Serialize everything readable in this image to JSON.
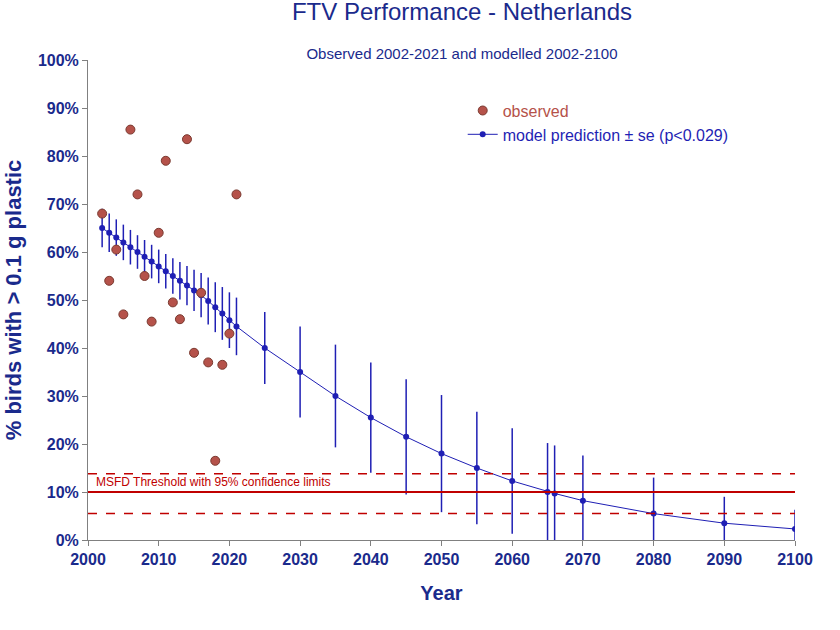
{
  "chart_data": {
    "type": "scatter",
    "title": "FTV Performance - Netherlands",
    "subtitle": "Observed 2002-2021 and modelled 2002-2100",
    "xlabel": "Year",
    "ylabel": "% birds with > 0.1 g plastic",
    "xlim": [
      2000,
      2100
    ],
    "xticks": [
      2000,
      2010,
      2020,
      2030,
      2040,
      2050,
      2060,
      2070,
      2080,
      2090,
      2100
    ],
    "ylim": [
      0,
      100
    ],
    "yticks": [
      {
        "value": 0,
        "label": "0%"
      },
      {
        "value": 10,
        "label": "10%"
      },
      {
        "value": 20,
        "label": "20%"
      },
      {
        "value": 30,
        "label": "30%"
      },
      {
        "value": 40,
        "label": "40%"
      },
      {
        "value": 50,
        "label": "50%"
      },
      {
        "value": 60,
        "label": "60%"
      },
      {
        "value": 70,
        "label": "70%"
      },
      {
        "value": 80,
        "label": "80%"
      },
      {
        "value": 90,
        "label": "90%"
      },
      {
        "value": 100,
        "label": "100%"
      }
    ],
    "grid": false,
    "legend": "upper right",
    "series": [
      {
        "name": "observed",
        "type": "scatter",
        "color": "#b5524a",
        "marker": "circle",
        "x": [
          2002,
          2003,
          2004,
          2005,
          2006,
          2007,
          2008,
          2009,
          2010,
          2011,
          2012,
          2013,
          2014,
          2015,
          2016,
          2017,
          2018,
          2019,
          2020,
          2021
        ],
        "values": [
          68,
          54,
          60.5,
          47,
          85.5,
          72,
          55,
          45.5,
          64,
          79,
          49.5,
          46,
          83.5,
          39,
          51.5,
          37,
          16.5,
          36.5,
          43,
          72
        ]
      },
      {
        "name": "model prediction ± se (p<0.029)",
        "type": "line",
        "color": "#1f1fb4",
        "marker": "circle",
        "x": [
          2002,
          2003,
          2004,
          2005,
          2006,
          2007,
          2008,
          2009,
          2010,
          2011,
          2012,
          2013,
          2014,
          2015,
          2016,
          2017,
          2018,
          2019,
          2020,
          2021,
          2025,
          2030,
          2035,
          2040,
          2045,
          2050,
          2055,
          2060,
          2065,
          2066,
          2070,
          2080,
          2090,
          2100
        ],
        "values": [
          65,
          64,
          63,
          62,
          61,
          60,
          59,
          58,
          57,
          56,
          55,
          54,
          53,
          52,
          51,
          49.8,
          48.5,
          47.2,
          45.8,
          44.5,
          40,
          35,
          30,
          25.5,
          21.5,
          18,
          15,
          12.3,
          10,
          9.7,
          8.2,
          5.5,
          3.5,
          2.3
        ],
        "error": [
          4,
          4,
          3.8,
          3.7,
          3.6,
          3.5,
          3.5,
          3.5,
          3.5,
          3.6,
          3.7,
          3.9,
          4.1,
          4.3,
          4.6,
          4.9,
          5.2,
          5.5,
          5.8,
          6,
          7.5,
          9.5,
          10.7,
          11.5,
          12,
          12.2,
          11.7,
          11,
          10.2,
          10,
          9.4,
          7.5,
          5.5,
          4
        ]
      }
    ],
    "threshold": {
      "label": "MSFD Threshold with 95% confidence limits",
      "value": 10,
      "lower": 5.5,
      "upper": 13.8,
      "color": "#c00000",
      "line_style": "solid"
    }
  }
}
